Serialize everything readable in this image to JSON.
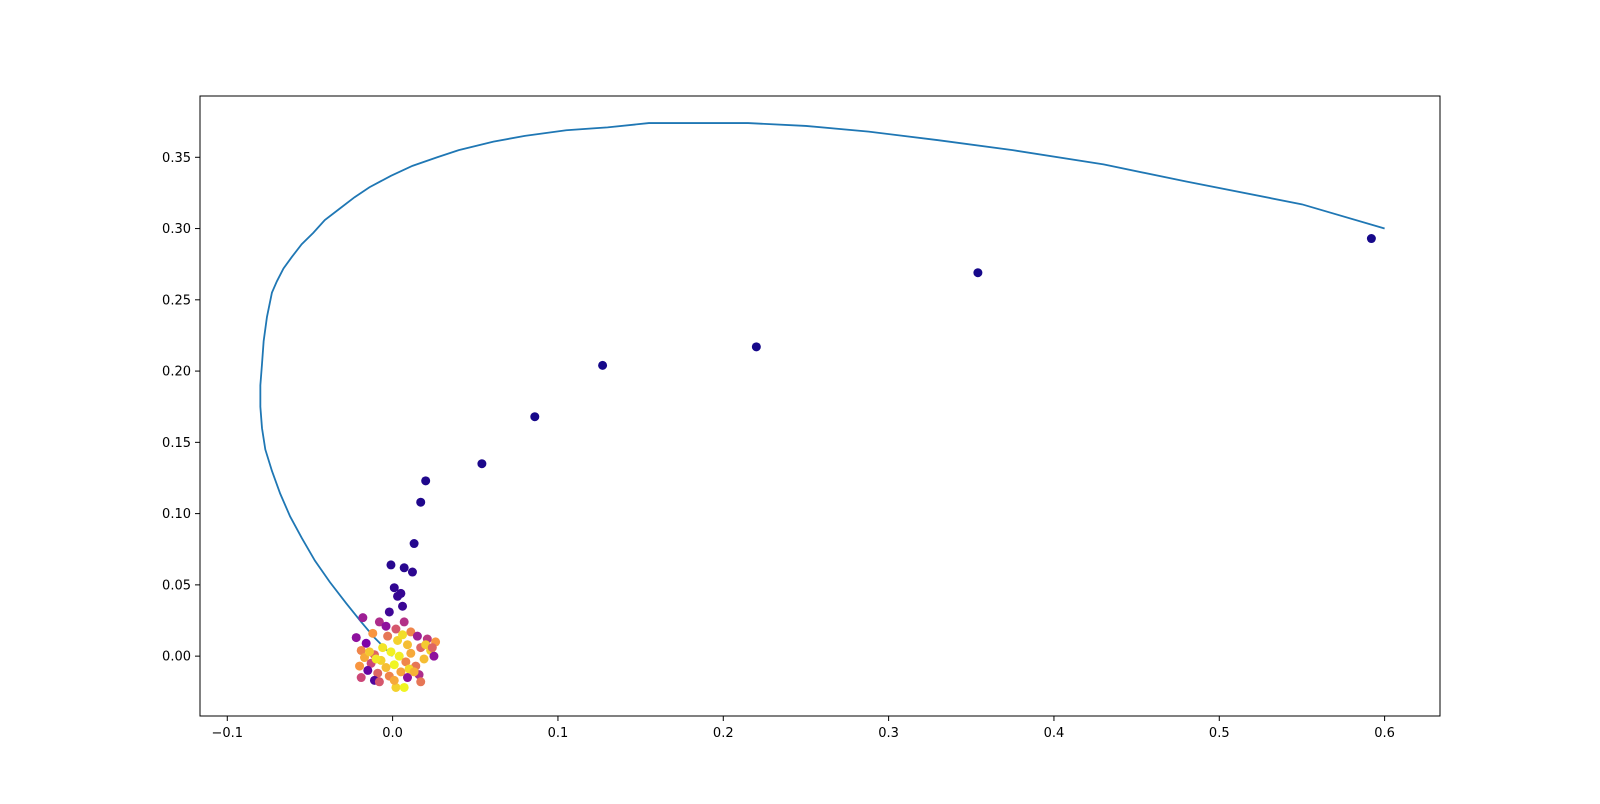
{
  "chart_data": {
    "type": "scatter",
    "title": "",
    "xlabel": "",
    "ylabel": "",
    "xlim": [
      -0.1165,
      0.6335
    ],
    "ylim": [
      -0.042,
      0.393
    ],
    "xticks": [
      -0.1,
      0.0,
      0.1,
      0.2,
      0.3,
      0.4,
      0.5,
      0.6
    ],
    "xtick_labels": [
      "−0.1",
      "0.0",
      "0.1",
      "0.2",
      "0.3",
      "0.4",
      "0.5",
      "0.6"
    ],
    "yticks": [
      0.0,
      0.05,
      0.1,
      0.15,
      0.2,
      0.25,
      0.3,
      0.35
    ],
    "ytick_labels": [
      "0.00",
      "0.05",
      "0.10",
      "0.15",
      "0.20",
      "0.25",
      "0.30",
      "0.35"
    ],
    "grid": false,
    "legend": "none",
    "line_color": "#1f77b4",
    "colormap": "plasma",
    "series": [
      {
        "type": "line",
        "x": [
          0.6,
          0.55,
          0.48,
          0.43,
          0.375,
          0.33,
          0.288,
          0.25,
          0.215,
          0.185,
          0.155,
          0.13,
          0.105,
          0.08,
          0.061,
          0.04,
          0.027,
          0.012,
          -0.001,
          -0.014,
          -0.023,
          -0.032,
          -0.041,
          -0.048,
          -0.055,
          -0.061,
          -0.066,
          -0.07,
          -0.073,
          -0.076,
          -0.078,
          -0.079,
          -0.08,
          -0.08,
          -0.079,
          -0.077,
          -0.073,
          -0.068,
          -0.062,
          -0.055,
          -0.047,
          -0.038,
          -0.028,
          -0.019,
          -0.011,
          -0.005,
          0.0
        ],
        "y": [
          0.3,
          0.317,
          0.333,
          0.345,
          0.355,
          0.362,
          0.368,
          0.372,
          0.374,
          0.374,
          0.374,
          0.371,
          0.369,
          0.365,
          0.361,
          0.355,
          0.35,
          0.344,
          0.337,
          0.329,
          0.322,
          0.314,
          0.306,
          0.297,
          0.289,
          0.28,
          0.272,
          0.263,
          0.255,
          0.238,
          0.221,
          0.205,
          0.19,
          0.175,
          0.16,
          0.145,
          0.13,
          0.114,
          0.098,
          0.083,
          0.067,
          0.052,
          0.037,
          0.024,
          0.013,
          0.006,
          0.0
        ]
      },
      {
        "type": "scatter",
        "points": [
          {
            "x": 0.592,
            "y": 0.293,
            "c": 0.02
          },
          {
            "x": 0.354,
            "y": 0.269,
            "c": 0.02
          },
          {
            "x": 0.22,
            "y": 0.217,
            "c": 0.02
          },
          {
            "x": 0.127,
            "y": 0.204,
            "c": 0.02
          },
          {
            "x": 0.086,
            "y": 0.168,
            "c": 0.02
          },
          {
            "x": 0.054,
            "y": 0.135,
            "c": 0.03
          },
          {
            "x": 0.02,
            "y": 0.123,
            "c": 0.04
          },
          {
            "x": 0.017,
            "y": 0.108,
            "c": 0.04
          },
          {
            "x": 0.013,
            "y": 0.079,
            "c": 0.05
          },
          {
            "x": -0.001,
            "y": 0.064,
            "c": 0.06
          },
          {
            "x": 0.007,
            "y": 0.062,
            "c": 0.06
          },
          {
            "x": 0.012,
            "y": 0.059,
            "c": 0.07
          },
          {
            "x": 0.001,
            "y": 0.048,
            "c": 0.08
          },
          {
            "x": 0.005,
            "y": 0.044,
            "c": 0.09
          },
          {
            "x": 0.003,
            "y": 0.042,
            "c": 0.09
          },
          {
            "x": 0.006,
            "y": 0.035,
            "c": 0.1
          },
          {
            "x": -0.002,
            "y": 0.031,
            "c": 0.11
          },
          {
            "x": -0.018,
            "y": 0.027,
            "c": 0.35
          },
          {
            "x": -0.008,
            "y": 0.024,
            "c": 0.4
          },
          {
            "x": 0.007,
            "y": 0.024,
            "c": 0.42
          },
          {
            "x": -0.004,
            "y": 0.021,
            "c": 0.3
          },
          {
            "x": 0.002,
            "y": 0.019,
            "c": 0.55
          },
          {
            "x": -0.012,
            "y": 0.016,
            "c": 0.75
          },
          {
            "x": 0.011,
            "y": 0.017,
            "c": 0.7
          },
          {
            "x": 0.015,
            "y": 0.014,
            "c": 0.35
          },
          {
            "x": -0.022,
            "y": 0.013,
            "c": 0.3
          },
          {
            "x": 0.021,
            "y": 0.012,
            "c": 0.45
          },
          {
            "x": 0.026,
            "y": 0.01,
            "c": 0.75
          },
          {
            "x": -0.016,
            "y": 0.009,
            "c": 0.25
          },
          {
            "x": 0.003,
            "y": 0.011,
            "c": 0.9
          },
          {
            "x": 0.009,
            "y": 0.008,
            "c": 0.85
          },
          {
            "x": -0.006,
            "y": 0.006,
            "c": 0.95
          },
          {
            "x": 0.017,
            "y": 0.006,
            "c": 0.6
          },
          {
            "x": -0.019,
            "y": 0.004,
            "c": 0.7
          },
          {
            "x": 0.023,
            "y": 0.004,
            "c": 0.9
          },
          {
            "x": -0.001,
            "y": 0.003,
            "c": 0.98
          },
          {
            "x": 0.011,
            "y": 0.002,
            "c": 0.8
          },
          {
            "x": -0.011,
            "y": 0.001,
            "c": 0.6
          },
          {
            "x": 0.004,
            "y": 0.0,
            "c": 0.97
          },
          {
            "x": -0.017,
            "y": -0.001,
            "c": 0.8
          },
          {
            "x": 0.025,
            "y": 0.0,
            "c": 0.3
          },
          {
            "x": 0.019,
            "y": -0.002,
            "c": 0.85
          },
          {
            "x": -0.007,
            "y": -0.003,
            "c": 0.9
          },
          {
            "x": 0.008,
            "y": -0.004,
            "c": 0.7
          },
          {
            "x": -0.013,
            "y": -0.005,
            "c": 0.5
          },
          {
            "x": 0.001,
            "y": -0.006,
            "c": 0.99
          },
          {
            "x": 0.014,
            "y": -0.007,
            "c": 0.65
          },
          {
            "x": -0.02,
            "y": -0.007,
            "c": 0.75
          },
          {
            "x": -0.004,
            "y": -0.008,
            "c": 0.85
          },
          {
            "x": 0.01,
            "y": -0.009,
            "c": 0.92
          },
          {
            "x": -0.015,
            "y": -0.01,
            "c": 0.2
          },
          {
            "x": 0.005,
            "y": -0.011,
            "c": 0.78
          },
          {
            "x": -0.009,
            "y": -0.012,
            "c": 0.6
          },
          {
            "x": 0.016,
            "y": -0.013,
            "c": 0.4
          },
          {
            "x": -0.019,
            "y": -0.015,
            "c": 0.5
          },
          {
            "x": -0.002,
            "y": -0.014,
            "c": 0.7
          },
          {
            "x": 0.009,
            "y": -0.015,
            "c": 0.3
          },
          {
            "x": -0.011,
            "y": -0.017,
            "c": 0.15
          },
          {
            "x": 0.017,
            "y": -0.018,
            "c": 0.65
          },
          {
            "x": 0.002,
            "y": -0.022,
            "c": 0.9
          },
          {
            "x": 0.007,
            "y": -0.022,
            "c": 0.99
          },
          {
            "x": -0.008,
            "y": -0.018,
            "c": 0.55
          },
          {
            "x": 0.013,
            "y": -0.011,
            "c": 0.82
          },
          {
            "x": -0.014,
            "y": 0.003,
            "c": 0.88
          },
          {
            "x": 0.02,
            "y": 0.008,
            "c": 0.88
          },
          {
            "x": -0.003,
            "y": 0.014,
            "c": 0.65
          },
          {
            "x": 0.006,
            "y": 0.015,
            "c": 0.93
          },
          {
            "x": 0.024,
            "y": 0.006,
            "c": 0.6
          },
          {
            "x": -0.01,
            "y": -0.002,
            "c": 0.96
          },
          {
            "x": 0.001,
            "y": -0.017,
            "c": 0.8
          }
        ]
      }
    ]
  }
}
